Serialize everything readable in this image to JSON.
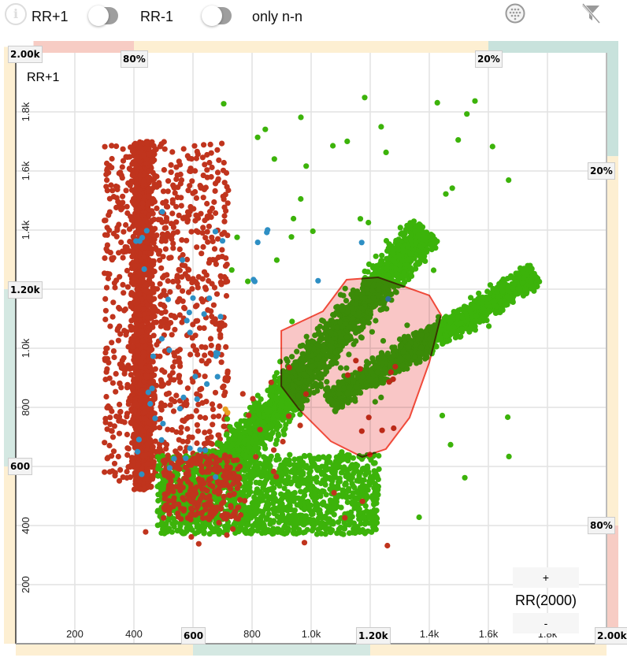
{
  "toolbar": {
    "info_icon": "info-icon",
    "label_left": "RR+1",
    "label_mid": "RR-1",
    "toggle1_on": false,
    "label_nn": "only n-n",
    "toggle2_on": false,
    "grid_icon": "grid-dots-icon",
    "filter_icon": "filter-off-icon"
  },
  "colors": {
    "red": "#c0341d",
    "green": "#3cb30a",
    "blue": "#2e8fc4",
    "orange": "#e8a020",
    "selection_fill": "#f9c6c6",
    "selection_stroke": "#f04a3a"
  },
  "badges": {
    "x_top_80": "80%",
    "x_top_20": "20%",
    "y_right_20": "20%",
    "y_right_80": "80%",
    "y_2000": "2.00k",
    "y_1200": "1.20k",
    "y_600": "600",
    "x_600": "600",
    "x_1200": "1.20k",
    "x_2000": "2.00k"
  },
  "rr_control": {
    "plus": "+",
    "label": "RR(2000)",
    "minus": "-"
  },
  "chart_data": {
    "type": "scatter",
    "title": "",
    "xlabel": "RR",
    "ylabel": "RR+1",
    "xlim": [
      0,
      2000
    ],
    "ylim": [
      0,
      2000
    ],
    "grid": true,
    "xticks": [
      {
        "v": 200,
        "t": "200"
      },
      {
        "v": 400,
        "t": "400"
      },
      {
        "v": 800,
        "t": "800"
      },
      {
        "v": 1000,
        "t": "1.0k"
      },
      {
        "v": 1400,
        "t": "1.4k"
      },
      {
        "v": 1600,
        "t": "1.6k"
      },
      {
        "v": 1800,
        "t": "1.8k"
      }
    ],
    "yticks": [
      {
        "v": 200,
        "t": "200"
      },
      {
        "v": 400,
        "t": "400"
      },
      {
        "v": 800,
        "t": "800"
      },
      {
        "v": 1000,
        "t": "1.0k"
      },
      {
        "v": 1400,
        "t": "1.4k"
      },
      {
        "v": 1600,
        "t": "1.6k"
      },
      {
        "v": 1800,
        "t": "1.8k"
      }
    ],
    "bands": {
      "top": [
        {
          "from": 60,
          "to": 400,
          "color": "#f7ccc4"
        },
        {
          "from": 400,
          "to": 1600,
          "color": "#fdefd2"
        },
        {
          "from": 1600,
          "to": 2000,
          "color": "#c8e2dc"
        }
      ],
      "right": [
        {
          "from": 1650,
          "to": 2040,
          "color": "#c8e2dc"
        },
        {
          "from": 400,
          "to": 1650,
          "color": "#fdefd2"
        },
        {
          "from": 0,
          "to": 400,
          "color": "#f7ccc4"
        }
      ],
      "left": [
        {
          "from": 1200,
          "to": 2020,
          "color": "#fdefd2"
        },
        {
          "from": 600,
          "to": 1200,
          "color": "#d4e8e2"
        },
        {
          "from": 0,
          "to": 600,
          "color": "#fdefd2"
        }
      ],
      "bottom": [
        {
          "from": 0,
          "to": 600,
          "color": "#fdefd2"
        },
        {
          "from": 600,
          "to": 1200,
          "color": "#d4e8e2"
        },
        {
          "from": 1200,
          "to": 2000,
          "color": "#fdefd2"
        }
      ]
    },
    "clusters": [
      {
        "series": "green",
        "kind": "line",
        "from": [
          560,
          430
        ],
        "to": [
          1390,
          1400
        ],
        "width": 90,
        "count": 2600
      },
      {
        "series": "green",
        "kind": "line",
        "from": [
          1060,
          820
        ],
        "to": [
          1760,
          1250
        ],
        "width": 60,
        "count": 1500
      },
      {
        "series": "green",
        "kind": "box",
        "x": [
          480,
          1230
        ],
        "y": [
          370,
          640
        ],
        "count": 1500
      },
      {
        "series": "green",
        "kind": "box",
        "x": [
          700,
          1700
        ],
        "y": [
          400,
          1850
        ],
        "count": 60
      },
      {
        "series": "red",
        "kind": "box",
        "x": [
          380,
          480
        ],
        "y": [
          520,
          1700
        ],
        "count": 1700
      },
      {
        "series": "red",
        "kind": "box",
        "x": [
          300,
          720
        ],
        "y": [
          550,
          1700
        ],
        "count": 900
      },
      {
        "series": "red",
        "kind": "box",
        "x": [
          500,
          760
        ],
        "y": [
          420,
          640
        ],
        "count": 260
      },
      {
        "series": "red",
        "kind": "box",
        "x": [
          330,
          1300
        ],
        "y": [
          330,
          1000
        ],
        "count": 60
      },
      {
        "series": "blue",
        "kind": "box",
        "x": [
          400,
          700
        ],
        "y": [
          550,
          1500
        ],
        "count": 45
      },
      {
        "series": "blue",
        "kind": "box",
        "x": [
          800,
          1300
        ],
        "y": [
          1100,
          1450
        ],
        "count": 8
      },
      {
        "series": "orange",
        "kind": "box",
        "x": [
          700,
          720
        ],
        "y": [
          780,
          800
        ],
        "count": 2
      }
    ],
    "selection_polygon": [
      [
        899,
        1059
      ],
      [
        1040,
        1125
      ],
      [
        1120,
        1232
      ],
      [
        1227,
        1240
      ],
      [
        1400,
        1179
      ],
      [
        1440,
        1112
      ],
      [
        1400,
        952
      ],
      [
        1333,
        765
      ],
      [
        1253,
        659
      ],
      [
        1173,
        632
      ],
      [
        1067,
        685
      ],
      [
        960,
        792
      ],
      [
        899,
        872
      ]
    ]
  }
}
